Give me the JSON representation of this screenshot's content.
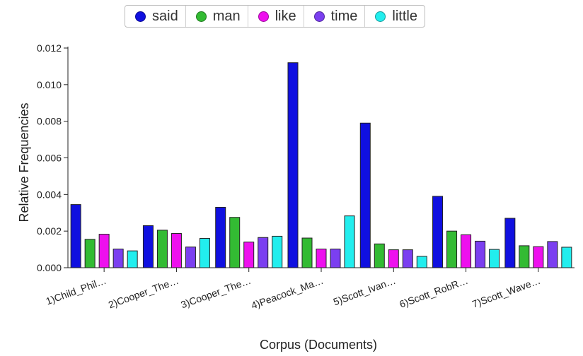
{
  "chart_data": {
    "type": "bar",
    "xlabel": "Corpus (Documents)",
    "ylabel": "Relative Frequencies",
    "ylim": [
      0,
      0.012
    ],
    "yticks": [
      "0.000",
      "0.002",
      "0.004",
      "0.006",
      "0.008",
      "0.010",
      "0.012"
    ],
    "categories": [
      "1)Child_Phil…",
      "2)Cooper_The…",
      "3)Cooper_The…",
      "4)Peacock_Ma…",
      "5)Scott_Ivan…",
      "6)Scott_RobR…",
      "7)Scott_Wave…"
    ],
    "series": [
      {
        "name": "said",
        "color": "#1010e0",
        "values": [
          0.00345,
          0.0023,
          0.0033,
          0.0112,
          0.0079,
          0.0039,
          0.0027
        ]
      },
      {
        "name": "man",
        "color": "#33bb33",
        "values": [
          0.00155,
          0.00205,
          0.00275,
          0.00162,
          0.0013,
          0.002,
          0.0012
        ]
      },
      {
        "name": "like",
        "color": "#ee10ee",
        "values": [
          0.00183,
          0.00187,
          0.0014,
          0.00102,
          0.00098,
          0.0018,
          0.00115
        ]
      },
      {
        "name": "time",
        "color": "#7b3ff0",
        "values": [
          0.00102,
          0.00113,
          0.00165,
          0.00102,
          0.00098,
          0.00145,
          0.00143
        ]
      },
      {
        "name": "little",
        "color": "#22eeee",
        "values": [
          0.00092,
          0.0016,
          0.00172,
          0.00283,
          0.00062,
          0.001,
          0.00112
        ]
      }
    ],
    "legend_position": "top-center",
    "grid": false
  }
}
